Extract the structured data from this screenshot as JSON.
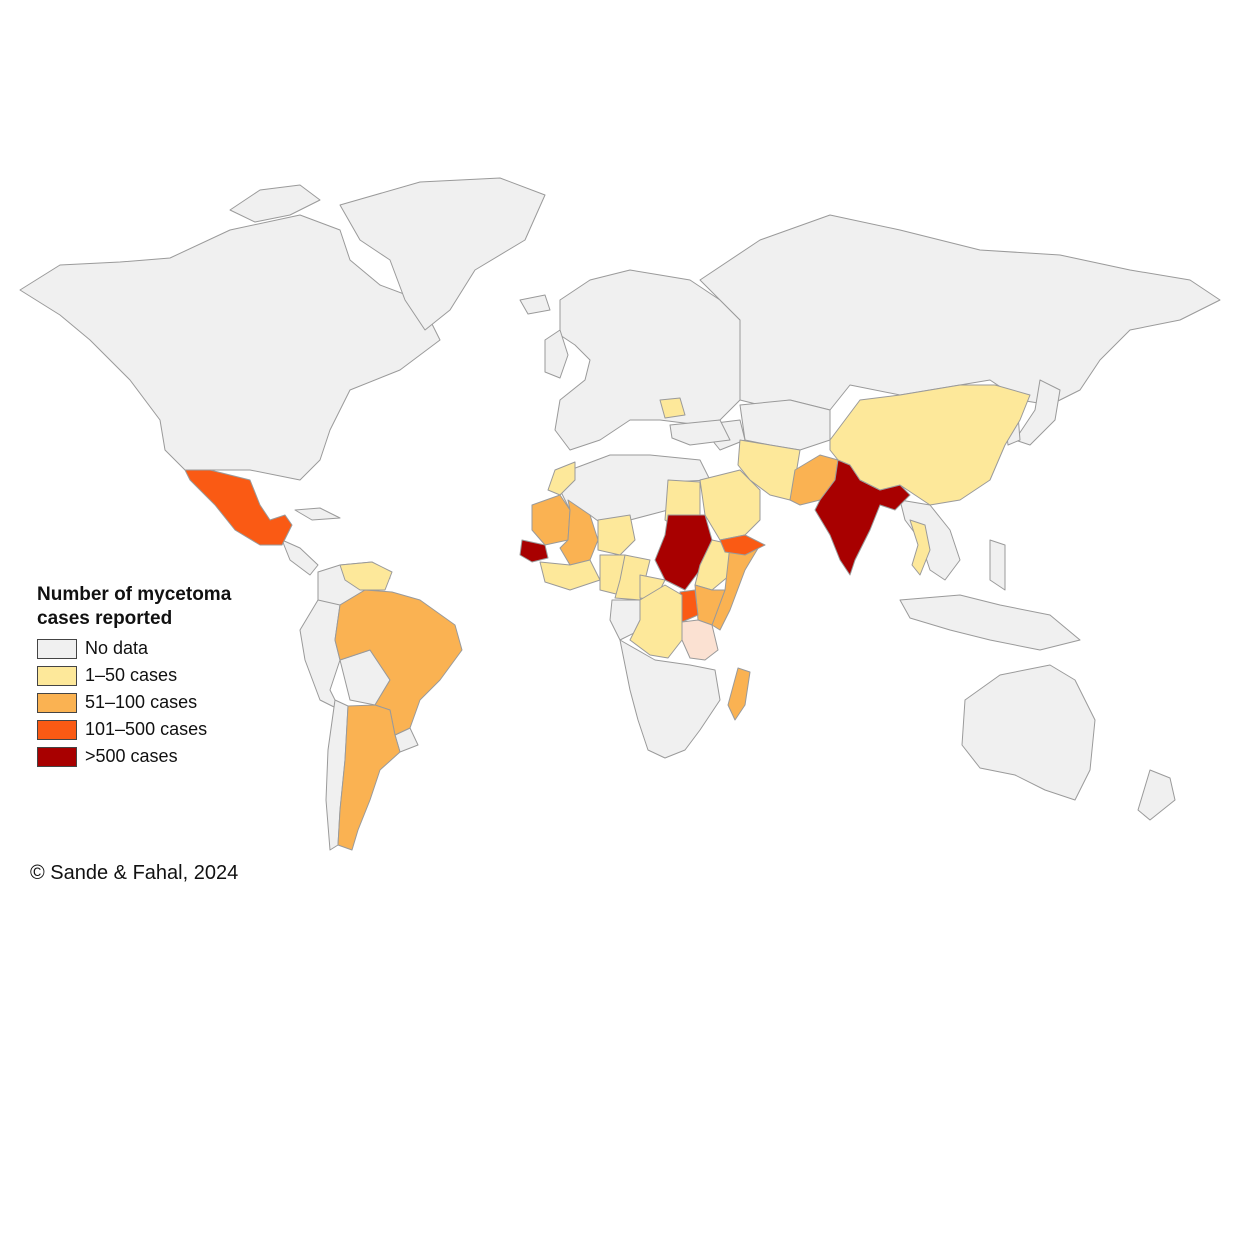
{
  "legend": {
    "title": "Number of mycetoma cases reported",
    "categories": [
      {
        "key": "nodata",
        "label": "No data",
        "color": "#f0f0f0"
      },
      {
        "key": "c1_50",
        "label": "1–50 cases",
        "color": "#fde89a"
      },
      {
        "key": "c51_100",
        "label": "51–100 cases",
        "color": "#fab252"
      },
      {
        "key": "c101_500",
        "label": "101–500 cases",
        "color": "#fa5a14"
      },
      {
        "key": "c500",
        "label": ">500 cases",
        "color": "#a80000"
      }
    ]
  },
  "extra_colors": {
    "tanzania_light": "#fbe1d2",
    "border": "#9a9a9a"
  },
  "copyright": "© Sande & Fahal, 2024",
  "countries": [
    {
      "name": "Mexico",
      "category": "c101_500"
    },
    {
      "name": "Venezuela",
      "category": "c1_50"
    },
    {
      "name": "Brazil",
      "category": "c51_100"
    },
    {
      "name": "Argentina",
      "category": "c51_100"
    },
    {
      "name": "Morocco",
      "category": "c1_50"
    },
    {
      "name": "Mauritania",
      "category": "c51_100"
    },
    {
      "name": "Mali",
      "category": "c51_100"
    },
    {
      "name": "Senegal",
      "category": "c500"
    },
    {
      "name": "Niger",
      "category": "c1_50"
    },
    {
      "name": "Burkina Faso",
      "category": "c1_50"
    },
    {
      "name": "Nigeria",
      "category": "c1_50"
    },
    {
      "name": "Chad",
      "category": "c1_50"
    },
    {
      "name": "Cameroon",
      "category": "c1_50"
    },
    {
      "name": "Egypt",
      "category": "c1_50"
    },
    {
      "name": "Sudan",
      "category": "c500"
    },
    {
      "name": "Ethiopia",
      "category": "c1_50"
    },
    {
      "name": "Somalia",
      "category": "c51_100"
    },
    {
      "name": "Kenya",
      "category": "c51_100"
    },
    {
      "name": "Uganda",
      "category": "c101_500"
    },
    {
      "name": "Tanzania",
      "category": "tanzania_light"
    },
    {
      "name": "DR Congo",
      "category": "c1_50"
    },
    {
      "name": "Madagascar",
      "category": "c51_100"
    },
    {
      "name": "Saudi Arabia",
      "category": "c1_50"
    },
    {
      "name": "Yemen",
      "category": "c101_500"
    },
    {
      "name": "Iran",
      "category": "c1_50"
    },
    {
      "name": "Pakistan",
      "category": "c51_100"
    },
    {
      "name": "India",
      "category": "c500"
    },
    {
      "name": "China",
      "category": "c1_50"
    },
    {
      "name": "Thailand",
      "category": "c1_50"
    },
    {
      "name": "Romania",
      "category": "c1_50"
    }
  ]
}
